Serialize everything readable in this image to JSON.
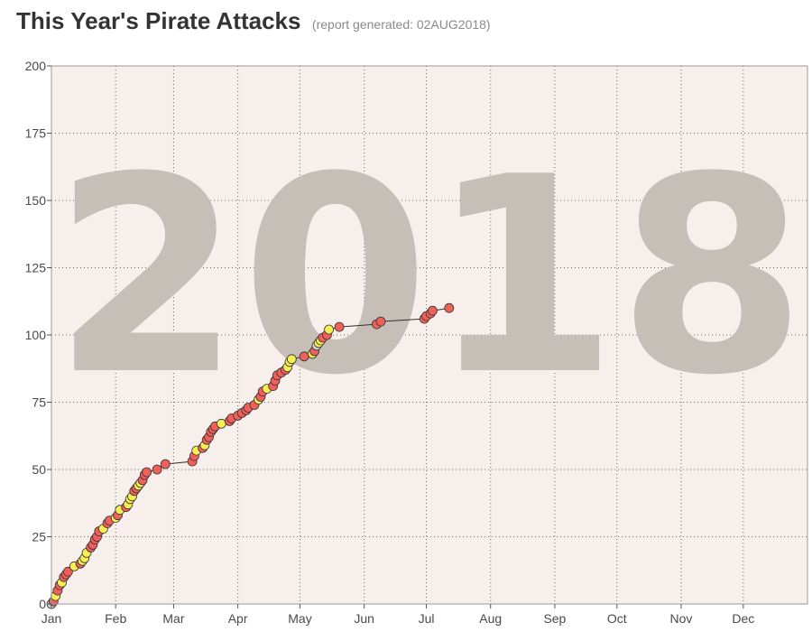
{
  "header": {
    "title": "This Year's Pirate Attacks",
    "subtitle": "(report generated: 02AUG2018)"
  },
  "chart_data": {
    "type": "line",
    "title": "This Year's Pirate Attacks",
    "subtitle": "(report generated: 02AUG2018)",
    "watermark": "2018",
    "xlabel": "",
    "ylabel": "",
    "x_range": [
      "2018-01-01",
      "2018-12-31"
    ],
    "ylim": [
      0,
      200
    ],
    "y_ticks": [
      0,
      25,
      50,
      75,
      100,
      125,
      150,
      175,
      200
    ],
    "x_tick_labels": [
      "Jan",
      "Feb",
      "Mar",
      "Apr",
      "May",
      "Jun",
      "Jul",
      "Aug",
      "Sep",
      "Oct",
      "Nov",
      "Dec"
    ],
    "x_tick_dates": [
      "2018-01-01",
      "2018-02-01",
      "2018-03-01",
      "2018-04-01",
      "2018-05-01",
      "2018-06-01",
      "2018-07-01",
      "2018-08-01",
      "2018-09-01",
      "2018-10-01",
      "2018-11-01",
      "2018-12-01"
    ],
    "grid": true,
    "plot_background": "#f7efeb",
    "marker_colors": {
      "red": "#f0605a",
      "yellow": "#f7ee53",
      "gray": "#d0d0d0"
    },
    "line_color": "#333333",
    "points": [
      {
        "x": "2018-01-01",
        "y": 0,
        "c": "gray"
      },
      {
        "x": "2018-01-02",
        "y": 1,
        "c": "red"
      },
      {
        "x": "2018-01-03",
        "y": 3,
        "c": "yellow"
      },
      {
        "x": "2018-01-04",
        "y": 5,
        "c": "red"
      },
      {
        "x": "2018-01-05",
        "y": 7,
        "c": "red"
      },
      {
        "x": "2018-01-06",
        "y": 8,
        "c": "yellow"
      },
      {
        "x": "2018-01-07",
        "y": 10,
        "c": "red"
      },
      {
        "x": "2018-01-08",
        "y": 11,
        "c": "red"
      },
      {
        "x": "2018-01-09",
        "y": 12,
        "c": "red"
      },
      {
        "x": "2018-01-12",
        "y": 14,
        "c": "yellow"
      },
      {
        "x": "2018-01-15",
        "y": 15,
        "c": "red"
      },
      {
        "x": "2018-01-16",
        "y": 16,
        "c": "yellow"
      },
      {
        "x": "2018-01-17",
        "y": 17,
        "c": "yellow"
      },
      {
        "x": "2018-01-18",
        "y": 19,
        "c": "yellow"
      },
      {
        "x": "2018-01-20",
        "y": 21,
        "c": "red"
      },
      {
        "x": "2018-01-21",
        "y": 22,
        "c": "red"
      },
      {
        "x": "2018-01-22",
        "y": 24,
        "c": "red"
      },
      {
        "x": "2018-01-23",
        "y": 25,
        "c": "red"
      },
      {
        "x": "2018-01-24",
        "y": 27,
        "c": "red"
      },
      {
        "x": "2018-01-26",
        "y": 28,
        "c": "yellow"
      },
      {
        "x": "2018-01-28",
        "y": 30,
        "c": "red"
      },
      {
        "x": "2018-01-29",
        "y": 31,
        "c": "red"
      },
      {
        "x": "2018-02-01",
        "y": 32,
        "c": "yellow"
      },
      {
        "x": "2018-02-02",
        "y": 33,
        "c": "red"
      },
      {
        "x": "2018-02-03",
        "y": 35,
        "c": "yellow"
      },
      {
        "x": "2018-02-06",
        "y": 36,
        "c": "red"
      },
      {
        "x": "2018-02-07",
        "y": 37,
        "c": "yellow"
      },
      {
        "x": "2018-02-08",
        "y": 39,
        "c": "yellow"
      },
      {
        "x": "2018-02-09",
        "y": 40,
        "c": "yellow"
      },
      {
        "x": "2018-02-10",
        "y": 42,
        "c": "red"
      },
      {
        "x": "2018-02-11",
        "y": 43,
        "c": "red"
      },
      {
        "x": "2018-02-12",
        "y": 44,
        "c": "yellow"
      },
      {
        "x": "2018-02-13",
        "y": 45,
        "c": "yellow"
      },
      {
        "x": "2018-02-14",
        "y": 46,
        "c": "red"
      },
      {
        "x": "2018-02-15",
        "y": 48,
        "c": "red"
      },
      {
        "x": "2018-02-16",
        "y": 49,
        "c": "red"
      },
      {
        "x": "2018-02-21",
        "y": 50,
        "c": "red"
      },
      {
        "x": "2018-02-25",
        "y": 52,
        "c": "red"
      },
      {
        "x": "2018-03-10",
        "y": 53,
        "c": "red"
      },
      {
        "x": "2018-03-11",
        "y": 55,
        "c": "red"
      },
      {
        "x": "2018-03-12",
        "y": 57,
        "c": "yellow"
      },
      {
        "x": "2018-03-15",
        "y": 58,
        "c": "red"
      },
      {
        "x": "2018-03-16",
        "y": 59,
        "c": "yellow"
      },
      {
        "x": "2018-03-17",
        "y": 61,
        "c": "red"
      },
      {
        "x": "2018-03-18",
        "y": 62,
        "c": "red"
      },
      {
        "x": "2018-03-19",
        "y": 64,
        "c": "red"
      },
      {
        "x": "2018-03-20",
        "y": 65,
        "c": "red"
      },
      {
        "x": "2018-03-21",
        "y": 66,
        "c": "red"
      },
      {
        "x": "2018-03-24",
        "y": 67,
        "c": "yellow"
      },
      {
        "x": "2018-03-28",
        "y": 68,
        "c": "red"
      },
      {
        "x": "2018-03-29",
        "y": 69,
        "c": "red"
      },
      {
        "x": "2018-04-01",
        "y": 70,
        "c": "red"
      },
      {
        "x": "2018-04-03",
        "y": 71,
        "c": "red"
      },
      {
        "x": "2018-04-05",
        "y": 72,
        "c": "red"
      },
      {
        "x": "2018-04-06",
        "y": 73,
        "c": "red"
      },
      {
        "x": "2018-04-09",
        "y": 74,
        "c": "red"
      },
      {
        "x": "2018-04-11",
        "y": 76,
        "c": "yellow"
      },
      {
        "x": "2018-04-12",
        "y": 77,
        "c": "red"
      },
      {
        "x": "2018-04-13",
        "y": 79,
        "c": "red"
      },
      {
        "x": "2018-04-15",
        "y": 80,
        "c": "yellow"
      },
      {
        "x": "2018-04-18",
        "y": 81,
        "c": "red"
      },
      {
        "x": "2018-04-19",
        "y": 83,
        "c": "red"
      },
      {
        "x": "2018-04-20",
        "y": 85,
        "c": "red"
      },
      {
        "x": "2018-04-22",
        "y": 86,
        "c": "red"
      },
      {
        "x": "2018-04-24",
        "y": 87,
        "c": "red"
      },
      {
        "x": "2018-04-25",
        "y": 88,
        "c": "yellow"
      },
      {
        "x": "2018-04-26",
        "y": 90,
        "c": "yellow"
      },
      {
        "x": "2018-04-27",
        "y": 91,
        "c": "yellow"
      },
      {
        "x": "2018-05-03",
        "y": 92,
        "c": "red"
      },
      {
        "x": "2018-05-07",
        "y": 93,
        "c": "yellow"
      },
      {
        "x": "2018-05-08",
        "y": 94,
        "c": "red"
      },
      {
        "x": "2018-05-09",
        "y": 96,
        "c": "gray"
      },
      {
        "x": "2018-05-10",
        "y": 97,
        "c": "yellow"
      },
      {
        "x": "2018-05-11",
        "y": 98,
        "c": "yellow"
      },
      {
        "x": "2018-05-12",
        "y": 99,
        "c": "red"
      },
      {
        "x": "2018-05-14",
        "y": 100,
        "c": "red"
      },
      {
        "x": "2018-05-15",
        "y": 102,
        "c": "yellow"
      },
      {
        "x": "2018-05-20",
        "y": 103,
        "c": "red"
      },
      {
        "x": "2018-06-07",
        "y": 104,
        "c": "red"
      },
      {
        "x": "2018-06-09",
        "y": 105,
        "c": "red"
      },
      {
        "x": "2018-06-30",
        "y": 106,
        "c": "red"
      },
      {
        "x": "2018-07-01",
        "y": 107,
        "c": "red"
      },
      {
        "x": "2018-07-03",
        "y": 108,
        "c": "red"
      },
      {
        "x": "2018-07-04",
        "y": 109,
        "c": "red"
      },
      {
        "x": "2018-07-12",
        "y": 110,
        "c": "red"
      }
    ]
  }
}
